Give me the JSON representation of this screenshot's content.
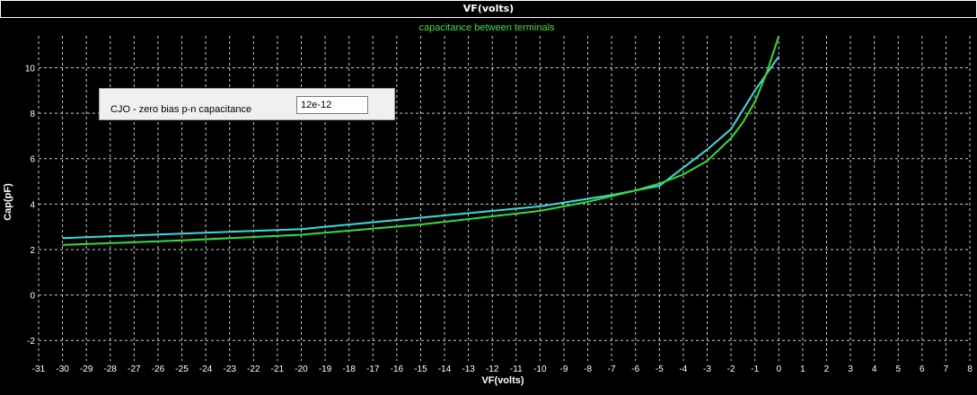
{
  "window": {
    "title": "VF(volts)"
  },
  "param_panel": {
    "label": "CJO - zero bias p-n capacitance",
    "value": "12e-12"
  },
  "colors": {
    "background": "#000000",
    "grid": "#c8c8c8",
    "series_green": "#33dd33",
    "series_cyan": "#33dddd",
    "text": "#ffffff",
    "legend": "#33dd33"
  },
  "chart_data": {
    "type": "line",
    "title": "capacitance between terminals",
    "xlabel": "VF(volts)",
    "ylabel": "Cap(pF)",
    "xlim": [
      -31,
      8
    ],
    "ylim": [
      -2.9,
      11.4
    ],
    "xticks": [
      -31,
      -30,
      -29,
      -28,
      -27,
      -26,
      -25,
      -24,
      -23,
      -22,
      -21,
      -20,
      -19,
      -18,
      -17,
      -16,
      -15,
      -14,
      -13,
      -12,
      -11,
      -10,
      -9,
      -8,
      -7,
      -6,
      -5,
      -4,
      -3,
      -2,
      -1,
      0,
      1,
      2,
      3,
      4,
      5,
      6,
      7,
      8
    ],
    "yticks": [
      -2,
      0,
      2,
      4,
      6,
      8,
      10
    ],
    "grid": true,
    "series": [
      {
        "color": "#33dddd",
        "x": [
          -30,
          -25,
          -20,
          -15,
          -10,
          -7,
          -5,
          -4,
          -3,
          -2,
          -1,
          0
        ],
        "y": [
          2.5,
          2.7,
          2.9,
          3.4,
          3.9,
          4.4,
          4.8,
          5.6,
          6.4,
          7.3,
          9.0,
          10.5
        ]
      },
      {
        "color": "#33dd33",
        "x": [
          -30,
          -25,
          -20,
          -15,
          -10,
          -8,
          -6,
          -5,
          -4,
          -3,
          -2,
          -1.5,
          -1,
          -0.5,
          0
        ],
        "y": [
          2.2,
          2.4,
          2.65,
          3.1,
          3.7,
          4.1,
          4.6,
          4.9,
          5.3,
          5.9,
          6.9,
          7.6,
          8.5,
          9.8,
          11.4
        ]
      }
    ]
  }
}
